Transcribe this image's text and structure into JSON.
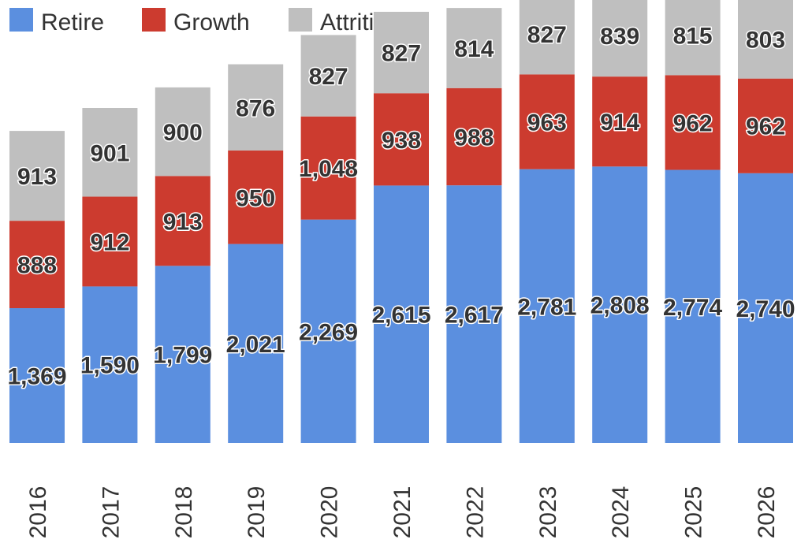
{
  "chart_data": {
    "type": "bar",
    "stacked": true,
    "categories": [
      "2016",
      "2017",
      "2018",
      "2019",
      "2020",
      "2021",
      "2022",
      "2023",
      "2024",
      "2025",
      "2026"
    ],
    "series": [
      {
        "name": "Retire",
        "color": "#5b8fdf",
        "values": [
          1369,
          1590,
          1799,
          2021,
          2269,
          2615,
          2617,
          2781,
          2808,
          2774,
          2740
        ],
        "labels": [
          "1,369",
          "1,590",
          "1,799",
          "2,021",
          "2,269",
          "2,615",
          "2,617",
          "2,781",
          "2,808",
          "2,774",
          "2,740"
        ]
      },
      {
        "name": "Growth",
        "color": "#cc3b2f",
        "values": [
          888,
          912,
          913,
          950,
          1048,
          938,
          988,
          963,
          914,
          962,
          962
        ],
        "labels": [
          "888",
          "912",
          "913",
          "950",
          "1,048",
          "938",
          "988",
          "963",
          "914",
          "962",
          "962"
        ]
      },
      {
        "name": "Attrition",
        "color": "#bfbfbf",
        "values": [
          913,
          901,
          900,
          876,
          827,
          827,
          814,
          827,
          839,
          815,
          803
        ],
        "labels": [
          "913",
          "901",
          "900",
          "876",
          "827",
          "827",
          "814",
          "827",
          "839",
          "815",
          "803"
        ]
      }
    ],
    "xlabel": "",
    "ylabel": "",
    "ylim": [
      0,
      4500
    ],
    "grid": false,
    "legend_position": "top-left",
    "x_tick_rotation": "vertical"
  }
}
